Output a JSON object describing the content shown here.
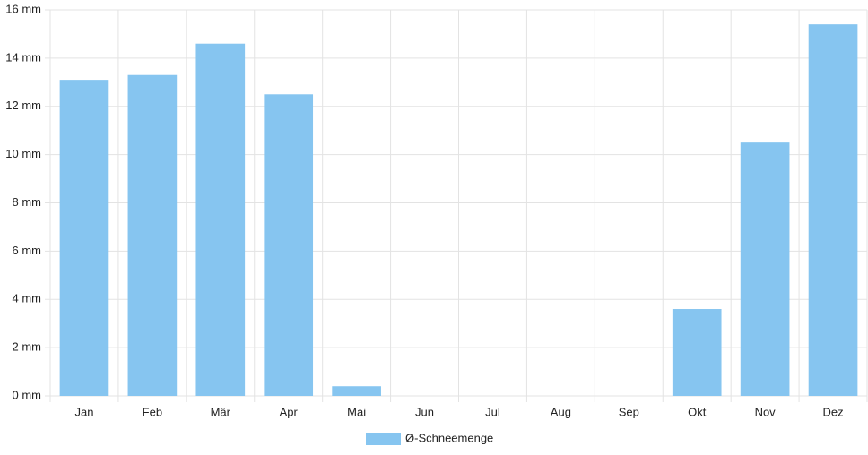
{
  "chart_data": {
    "type": "bar",
    "categories": [
      "Jan",
      "Feb",
      "Mär",
      "Apr",
      "Mai",
      "Jun",
      "Jul",
      "Aug",
      "Sep",
      "Okt",
      "Nov",
      "Dez"
    ],
    "series": [
      {
        "name": "Ø-Schneemenge",
        "color": "#86c5f0",
        "values": [
          13.1,
          13.3,
          14.6,
          12.5,
          0.4,
          0,
          0,
          0,
          0,
          3.6,
          10.5,
          15.4
        ]
      }
    ],
    "ylim": [
      0,
      16
    ],
    "yticks": [
      {
        "value": 0,
        "label": "0 mm"
      },
      {
        "value": 2,
        "label": "2 mm"
      },
      {
        "value": 4,
        "label": "4 mm"
      },
      {
        "value": 6,
        "label": "6 mm"
      },
      {
        "value": 8,
        "label": "8 mm"
      },
      {
        "value": 10,
        "label": "10 mm"
      },
      {
        "value": 12,
        "label": "12 mm"
      },
      {
        "value": 14,
        "label": "14 mm"
      },
      {
        "value": 16,
        "label": "16 mm"
      }
    ],
    "grid": true,
    "legend": "bottom"
  }
}
